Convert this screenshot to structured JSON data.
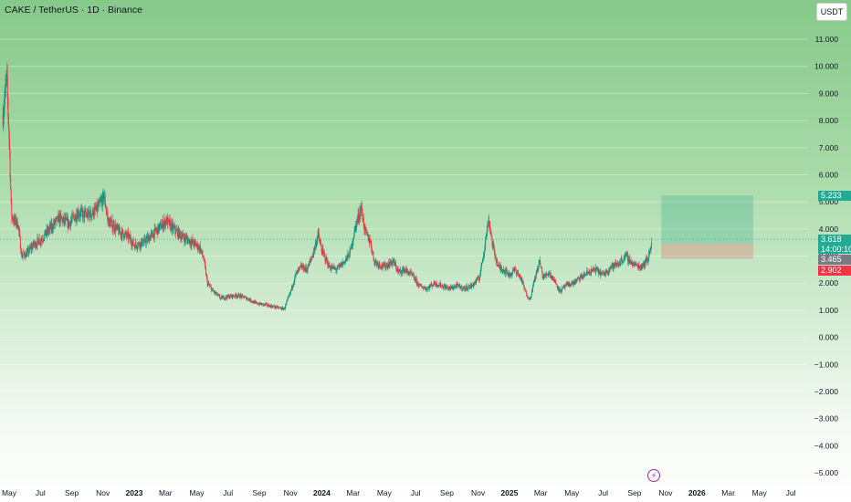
{
  "header": {
    "title": "CAKE / TetherUS · 1D · Binance",
    "currency": "USDT"
  },
  "chart_data": {
    "type": "candlestick",
    "symbol": "CAKE / TetherUS",
    "interval": "1D",
    "exchange": "Binance",
    "x_ticks": [
      {
        "label": "May",
        "t": 2022.333
      },
      {
        "label": "Jul",
        "t": 2022.5
      },
      {
        "label": "Sep",
        "t": 2022.667
      },
      {
        "label": "Nov",
        "t": 2022.833
      },
      {
        "label": "2023",
        "t": 2023.0
      },
      {
        "label": "Mar",
        "t": 2023.167
      },
      {
        "label": "May",
        "t": 2023.333
      },
      {
        "label": "Jul",
        "t": 2023.5
      },
      {
        "label": "Sep",
        "t": 2023.667
      },
      {
        "label": "Nov",
        "t": 2023.833
      },
      {
        "label": "2024",
        "t": 2024.0
      },
      {
        "label": "Mar",
        "t": 2024.167
      },
      {
        "label": "May",
        "t": 2024.333
      },
      {
        "label": "Jul",
        "t": 2024.5
      },
      {
        "label": "Sep",
        "t": 2024.667
      },
      {
        "label": "Nov",
        "t": 2024.833
      },
      {
        "label": "2025",
        "t": 2025.0
      },
      {
        "label": "Mar",
        "t": 2025.167
      },
      {
        "label": "May",
        "t": 2025.333
      },
      {
        "label": "Jul",
        "t": 2025.5
      },
      {
        "label": "Sep",
        "t": 2025.667
      },
      {
        "label": "Nov",
        "t": 2025.833
      },
      {
        "label": "2026",
        "t": 2026.0
      },
      {
        "label": "Mar",
        "t": 2026.167
      },
      {
        "label": "May",
        "t": 2026.333
      },
      {
        "label": "Jul",
        "t": 2026.5
      }
    ],
    "y_ticks": [
      "11.000",
      "10.000",
      "9.000",
      "8.000",
      "7.000",
      "6.000",
      "5.000",
      "4.000",
      "3.000",
      "2.000",
      "1.000",
      "0.000",
      "−1.000",
      "−2.000",
      "−3.000",
      "−4.000",
      "−5.000"
    ],
    "y_tick_values": [
      11,
      10,
      9,
      8,
      7,
      6,
      5,
      4,
      3,
      2,
      1,
      0,
      -1,
      -2,
      -3,
      -4,
      -5
    ],
    "ylim": [
      -5.2,
      12.0
    ],
    "price_path": [
      [
        2022.3,
        8.2
      ],
      [
        2022.32,
        9.6
      ],
      [
        2022.335,
        7.0
      ],
      [
        2022.345,
        4.5
      ],
      [
        2022.36,
        4.3
      ],
      [
        2022.38,
        4.2
      ],
      [
        2022.4,
        3.0
      ],
      [
        2022.43,
        3.1
      ],
      [
        2022.46,
        3.4
      ],
      [
        2022.5,
        3.6
      ],
      [
        2022.55,
        4.0
      ],
      [
        2022.6,
        4.4
      ],
      [
        2022.65,
        4.2
      ],
      [
        2022.7,
        4.6
      ],
      [
        2022.75,
        4.5
      ],
      [
        2022.8,
        4.7
      ],
      [
        2022.84,
        5.2
      ],
      [
        2022.86,
        4.3
      ],
      [
        2022.92,
        3.9
      ],
      [
        2022.97,
        3.7
      ],
      [
        2023.0,
        3.4
      ],
      [
        2023.05,
        3.5
      ],
      [
        2023.1,
        3.8
      ],
      [
        2023.17,
        4.3
      ],
      [
        2023.21,
        4.0
      ],
      [
        2023.26,
        3.7
      ],
      [
        2023.31,
        3.5
      ],
      [
        2023.35,
        3.3
      ],
      [
        2023.37,
        2.9
      ],
      [
        2023.39,
        2.0
      ],
      [
        2023.42,
        1.7
      ],
      [
        2023.46,
        1.45
      ],
      [
        2023.5,
        1.5
      ],
      [
        2023.55,
        1.55
      ],
      [
        2023.6,
        1.45
      ],
      [
        2023.65,
        1.25
      ],
      [
        2023.7,
        1.2
      ],
      [
        2023.76,
        1.1
      ],
      [
        2023.8,
        1.05
      ],
      [
        2023.83,
        1.6
      ],
      [
        2023.86,
        2.3
      ],
      [
        2023.89,
        2.6
      ],
      [
        2023.92,
        2.5
      ],
      [
        2023.95,
        3.0
      ],
      [
        2023.98,
        3.8
      ],
      [
        2024.0,
        3.2
      ],
      [
        2024.04,
        2.6
      ],
      [
        2024.08,
        2.5
      ],
      [
        2024.12,
        2.8
      ],
      [
        2024.15,
        3.1
      ],
      [
        2024.18,
        4.1
      ],
      [
        2024.21,
        4.8
      ],
      [
        2024.23,
        3.9
      ],
      [
        2024.26,
        3.5
      ],
      [
        2024.28,
        2.8
      ],
      [
        2024.33,
        2.6
      ],
      [
        2024.38,
        2.8
      ],
      [
        2024.41,
        2.4
      ],
      [
        2024.44,
        2.5
      ],
      [
        2024.48,
        2.3
      ],
      [
        2024.52,
        1.9
      ],
      [
        2024.56,
        1.8
      ],
      [
        2024.6,
        2.0
      ],
      [
        2024.64,
        1.9
      ],
      [
        2024.68,
        1.8
      ],
      [
        2024.72,
        1.9
      ],
      [
        2024.76,
        1.8
      ],
      [
        2024.8,
        1.9
      ],
      [
        2024.84,
        2.2
      ],
      [
        2024.86,
        3.0
      ],
      [
        2024.89,
        4.4
      ],
      [
        2024.91,
        3.4
      ],
      [
        2024.94,
        2.6
      ],
      [
        2024.97,
        2.5
      ],
      [
        2025.0,
        2.3
      ],
      [
        2025.03,
        2.5
      ],
      [
        2025.06,
        2.2
      ],
      [
        2025.09,
        1.6
      ],
      [
        2025.11,
        1.4
      ],
      [
        2025.13,
        2.0
      ],
      [
        2025.16,
        2.8
      ],
      [
        2025.18,
        2.2
      ],
      [
        2025.21,
        2.4
      ],
      [
        2025.24,
        2.1
      ],
      [
        2025.27,
        1.7
      ],
      [
        2025.3,
        1.9
      ],
      [
        2025.34,
        2.0
      ],
      [
        2025.38,
        2.2
      ],
      [
        2025.42,
        2.4
      ],
      [
        2025.46,
        2.5
      ],
      [
        2025.5,
        2.3
      ],
      [
        2025.54,
        2.6
      ],
      [
        2025.58,
        2.7
      ],
      [
        2025.62,
        3.0
      ],
      [
        2025.66,
        2.7
      ],
      [
        2025.7,
        2.6
      ],
      [
        2025.74,
        2.9
      ],
      [
        2025.76,
        3.618
      ]
    ],
    "position": {
      "type": "long",
      "target": 5.233,
      "entry": 3.465,
      "stop": 2.902,
      "t_start": 2025.81,
      "t_end": 2026.3
    },
    "current_price": 3.618,
    "countdown": "14:00:10",
    "price_labels": {
      "target": "5.233",
      "current": "3.618",
      "entry": "3.465",
      "stop": "2.902"
    }
  }
}
